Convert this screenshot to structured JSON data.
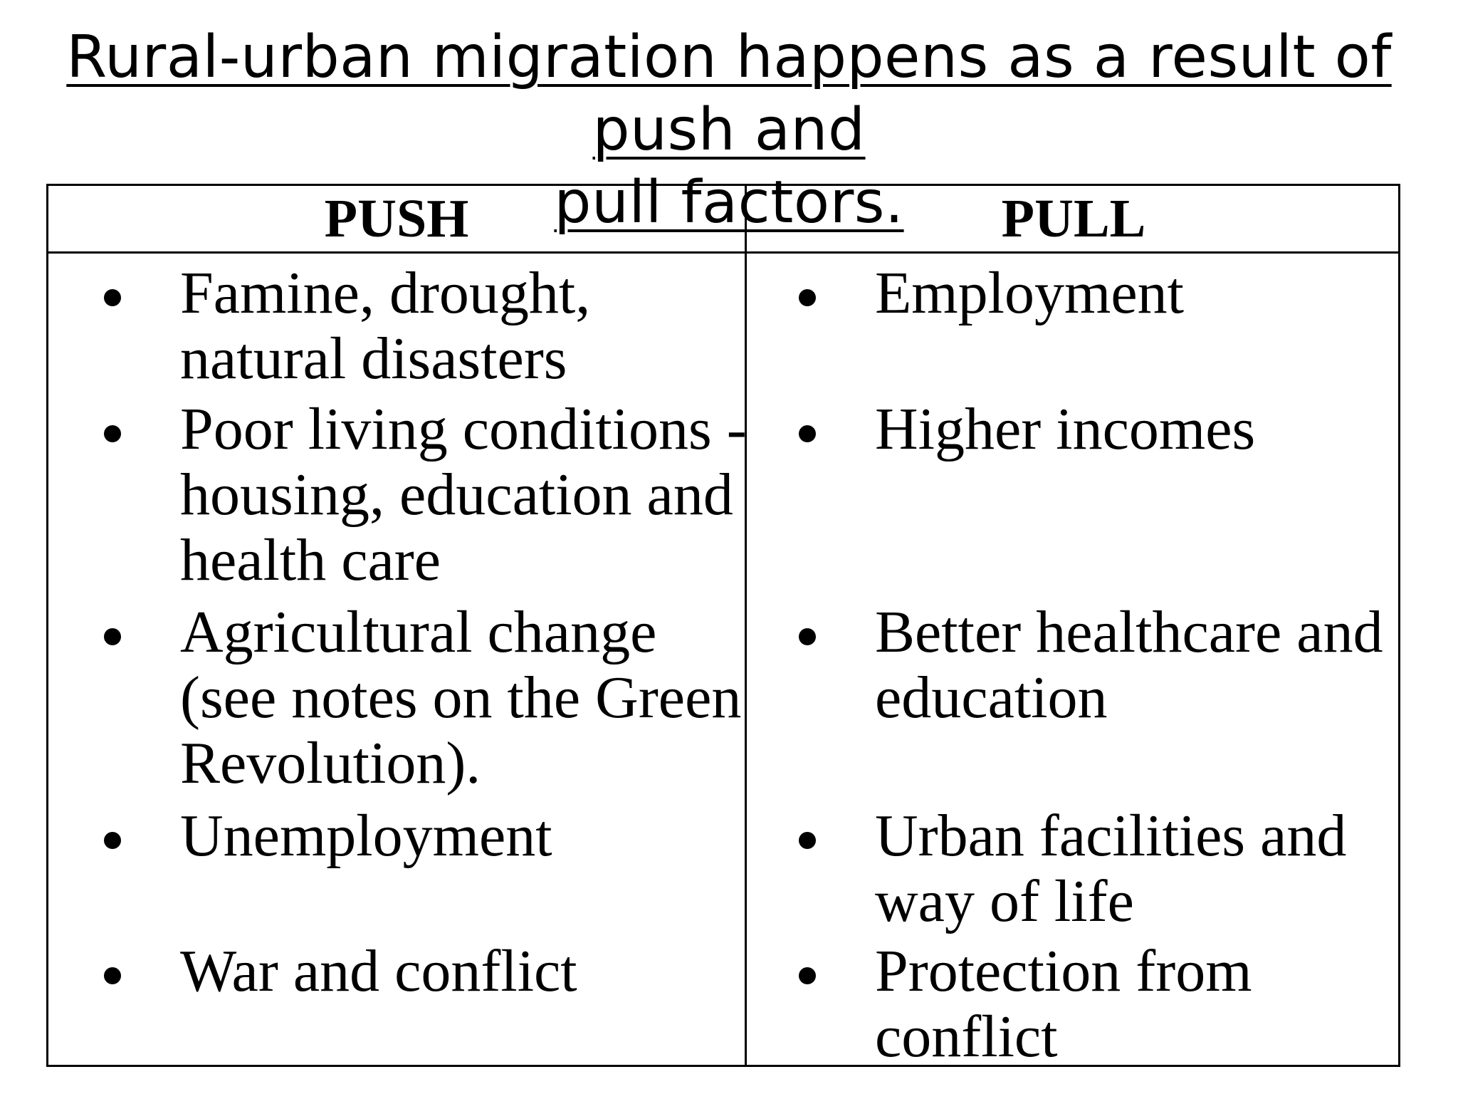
{
  "title": {
    "line1": "Rural-urban migration happens as a result of push and",
    "line2": "pull factors."
  },
  "table": {
    "push_header": "PUSH",
    "pull_header": "PULL",
    "push_items": [
      {
        "lines": [
          "Famine, drought,",
          "natural disasters"
        ]
      },
      {
        "lines": [
          "Poor living conditions -",
          "housing, education and",
          "health care"
        ]
      },
      {
        "lines": [
          "Agricultural change",
          "(see notes on the Green",
          "Revolution)."
        ]
      },
      {
        "lines": [
          "Unemployment"
        ]
      },
      {
        "lines": [
          "War and conflict"
        ]
      }
    ],
    "pull_items": [
      {
        "lines": [
          "Employment"
        ]
      },
      {
        "lines": [
          "Higher incomes"
        ]
      },
      {
        "lines": [
          "Better healthcare and",
          "education"
        ]
      },
      {
        "lines": [
          "Urban facilities and",
          "way of life"
        ]
      },
      {
        "lines": [
          "Protection from",
          "conflict"
        ]
      }
    ]
  }
}
